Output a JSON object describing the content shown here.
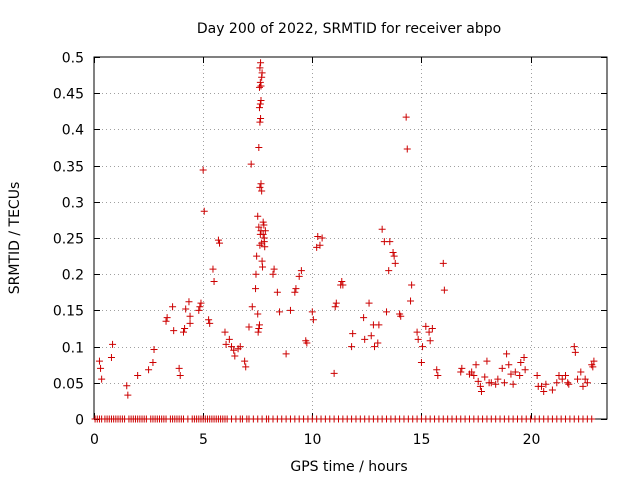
{
  "chart_data": {
    "type": "scatter",
    "title": "Day 200 of 2022, SRMTID for receiver abpo",
    "xlabel": "GPS time / hours",
    "ylabel": "SRMTID / TECUs",
    "xlim": [
      0,
      23.5
    ],
    "ylim": [
      0,
      0.5
    ],
    "x_ticks": [
      0,
      5,
      10,
      15,
      20
    ],
    "y_ticks": [
      0,
      0.05,
      0.1,
      0.15,
      0.2,
      0.25,
      0.3,
      0.35,
      0.4,
      0.45,
      0.5
    ],
    "x_tick_labels": [
      "0",
      "5",
      "10",
      "15",
      "20"
    ],
    "y_tick_labels": [
      "0",
      "0.05",
      "0.1",
      "0.15",
      "0.2",
      "0.25",
      "0.3",
      "0.35",
      "0.4",
      "0.45",
      "0.5"
    ],
    "grid": true,
    "marker": "+",
    "color": "#cc0000",
    "series": [
      {
        "name": "SRMTID",
        "points": [
          [
            0.25,
            0.08
          ],
          [
            0.3,
            0.07
          ],
          [
            0.35,
            0.055
          ],
          [
            0.8,
            0.085
          ],
          [
            0.85,
            0.103
          ],
          [
            1.5,
            0.046
          ],
          [
            1.55,
            0.033
          ],
          [
            2.0,
            0.06
          ],
          [
            2.5,
            0.068
          ],
          [
            2.7,
            0.078
          ],
          [
            2.75,
            0.096
          ],
          [
            3.3,
            0.135
          ],
          [
            3.35,
            0.14
          ],
          [
            3.6,
            0.155
          ],
          [
            3.65,
            0.122
          ],
          [
            3.9,
            0.07
          ],
          [
            3.95,
            0.06
          ],
          [
            4.1,
            0.12
          ],
          [
            4.15,
            0.125
          ],
          [
            4.2,
            0.152
          ],
          [
            4.35,
            0.162
          ],
          [
            4.4,
            0.142
          ],
          [
            4.4,
            0.132
          ],
          [
            4.8,
            0.15
          ],
          [
            4.85,
            0.155
          ],
          [
            4.9,
            0.16
          ],
          [
            5.0,
            0.344
          ],
          [
            5.05,
            0.287
          ],
          [
            5.25,
            0.137
          ],
          [
            5.3,
            0.132
          ],
          [
            5.45,
            0.207
          ],
          [
            5.5,
            0.19
          ],
          [
            5.7,
            0.247
          ],
          [
            5.75,
            0.243
          ],
          [
            6.0,
            0.12
          ],
          [
            6.05,
            0.103
          ],
          [
            6.2,
            0.11
          ],
          [
            6.3,
            0.1
          ],
          [
            6.4,
            0.095
          ],
          [
            6.45,
            0.087
          ],
          [
            6.6,
            0.097
          ],
          [
            6.7,
            0.1
          ],
          [
            6.9,
            0.08
          ],
          [
            6.95,
            0.072
          ],
          [
            7.1,
            0.127
          ],
          [
            7.2,
            0.352
          ],
          [
            7.25,
            0.155
          ],
          [
            7.4,
            0.18
          ],
          [
            7.42,
            0.2
          ],
          [
            7.45,
            0.225
          ],
          [
            7.5,
            0.145
          ],
          [
            7.52,
            0.12
          ],
          [
            7.55,
            0.125
          ],
          [
            7.58,
            0.13
          ],
          [
            7.6,
            0.24
          ],
          [
            7.62,
            0.255
          ],
          [
            7.65,
            0.26
          ],
          [
            7.68,
            0.243
          ],
          [
            7.7,
            0.218
          ],
          [
            7.72,
            0.21
          ],
          [
            7.75,
            0.272
          ],
          [
            7.78,
            0.268
          ],
          [
            7.8,
            0.245
          ],
          [
            7.82,
            0.238
          ],
          [
            7.5,
            0.28
          ],
          [
            7.55,
            0.265
          ],
          [
            7.6,
            0.32
          ],
          [
            7.65,
            0.325
          ],
          [
            7.68,
            0.315
          ],
          [
            7.55,
            0.375
          ],
          [
            7.58,
            0.43
          ],
          [
            7.62,
            0.435
          ],
          [
            7.65,
            0.44
          ],
          [
            7.6,
            0.41
          ],
          [
            7.63,
            0.415
          ],
          [
            7.58,
            0.458
          ],
          [
            7.62,
            0.465
          ],
          [
            7.65,
            0.46
          ],
          [
            7.68,
            0.472
          ],
          [
            7.6,
            0.485
          ],
          [
            7.63,
            0.492
          ],
          [
            7.7,
            0.478
          ],
          [
            7.75,
            0.255
          ],
          [
            7.8,
            0.25
          ],
          [
            7.85,
            0.26
          ],
          [
            8.2,
            0.2
          ],
          [
            8.25,
            0.207
          ],
          [
            8.4,
            0.175
          ],
          [
            8.5,
            0.148
          ],
          [
            8.8,
            0.09
          ],
          [
            9.0,
            0.15
          ],
          [
            9.2,
            0.175
          ],
          [
            9.25,
            0.18
          ],
          [
            9.4,
            0.197
          ],
          [
            9.5,
            0.205
          ],
          [
            9.7,
            0.108
          ],
          [
            9.75,
            0.105
          ],
          [
            10.0,
            0.148
          ],
          [
            10.05,
            0.137
          ],
          [
            10.2,
            0.237
          ],
          [
            10.25,
            0.252
          ],
          [
            10.35,
            0.24
          ],
          [
            10.45,
            0.25
          ],
          [
            11.0,
            0.063
          ],
          [
            11.05,
            0.155
          ],
          [
            11.1,
            0.16
          ],
          [
            11.3,
            0.185
          ],
          [
            11.35,
            0.19
          ],
          [
            11.4,
            0.185
          ],
          [
            11.8,
            0.1
          ],
          [
            11.85,
            0.118
          ],
          [
            12.35,
            0.14
          ],
          [
            12.4,
            0.11
          ],
          [
            12.6,
            0.16
          ],
          [
            12.7,
            0.115
          ],
          [
            12.8,
            0.13
          ],
          [
            12.85,
            0.1
          ],
          [
            13.0,
            0.105
          ],
          [
            13.05,
            0.13
          ],
          [
            13.2,
            0.262
          ],
          [
            13.3,
            0.245
          ],
          [
            13.4,
            0.148
          ],
          [
            13.5,
            0.205
          ],
          [
            13.55,
            0.245
          ],
          [
            13.7,
            0.23
          ],
          [
            13.75,
            0.225
          ],
          [
            13.8,
            0.215
          ],
          [
            14.0,
            0.145
          ],
          [
            14.05,
            0.142
          ],
          [
            14.3,
            0.417
          ],
          [
            14.35,
            0.373
          ],
          [
            14.5,
            0.163
          ],
          [
            14.55,
            0.185
          ],
          [
            14.8,
            0.12
          ],
          [
            14.85,
            0.11
          ],
          [
            15.0,
            0.078
          ],
          [
            15.05,
            0.1
          ],
          [
            15.2,
            0.128
          ],
          [
            15.35,
            0.12
          ],
          [
            15.4,
            0.108
          ],
          [
            15.5,
            0.125
          ],
          [
            15.7,
            0.068
          ],
          [
            15.75,
            0.06
          ],
          [
            16.0,
            0.215
          ],
          [
            16.05,
            0.178
          ],
          [
            16.8,
            0.065
          ],
          [
            16.85,
            0.07
          ],
          [
            17.2,
            0.062
          ],
          [
            17.3,
            0.065
          ],
          [
            17.4,
            0.06
          ],
          [
            17.5,
            0.075
          ],
          [
            17.6,
            0.052
          ],
          [
            17.7,
            0.045
          ],
          [
            17.75,
            0.038
          ],
          [
            17.9,
            0.058
          ],
          [
            18.0,
            0.08
          ],
          [
            18.1,
            0.05
          ],
          [
            18.2,
            0.05
          ],
          [
            18.4,
            0.048
          ],
          [
            18.5,
            0.055
          ],
          [
            18.7,
            0.07
          ],
          [
            18.8,
            0.05
          ],
          [
            18.9,
            0.09
          ],
          [
            19.0,
            0.075
          ],
          [
            19.1,
            0.062
          ],
          [
            19.2,
            0.048
          ],
          [
            19.3,
            0.065
          ],
          [
            19.5,
            0.06
          ],
          [
            19.55,
            0.078
          ],
          [
            19.7,
            0.085
          ],
          [
            19.75,
            0.068
          ],
          [
            20.3,
            0.06
          ],
          [
            20.35,
            0.045
          ],
          [
            20.5,
            0.045
          ],
          [
            20.6,
            0.038
          ],
          [
            20.7,
            0.048
          ],
          [
            21.0,
            0.04
          ],
          [
            21.2,
            0.05
          ],
          [
            21.3,
            0.06
          ],
          [
            21.45,
            0.055
          ],
          [
            21.6,
            0.06
          ],
          [
            21.7,
            0.05
          ],
          [
            21.75,
            0.048
          ],
          [
            22.0,
            0.1
          ],
          [
            22.05,
            0.092
          ],
          [
            22.15,
            0.055
          ],
          [
            22.3,
            0.065
          ],
          [
            22.4,
            0.045
          ],
          [
            22.5,
            0.055
          ],
          [
            22.6,
            0.05
          ],
          [
            22.8,
            0.075
          ],
          [
            22.85,
            0.072
          ],
          [
            22.9,
            0.08
          ]
        ]
      }
    ],
    "baseline_points": [
      0.05,
      0.15,
      0.25,
      0.35,
      0.5,
      0.6,
      0.7,
      0.8,
      0.9,
      1.0,
      1.1,
      1.2,
      1.3,
      1.4,
      1.6,
      1.7,
      1.8,
      1.9,
      2.0,
      2.1,
      2.2,
      2.3,
      2.4,
      2.6,
      2.7,
      2.8,
      2.9,
      3.0,
      3.1,
      3.2,
      3.3,
      3.5,
      3.6,
      3.7,
      3.8,
      3.9,
      4.0,
      4.1,
      4.3,
      4.5,
      4.6,
      4.7,
      4.8,
      4.9,
      5.0,
      5.1,
      5.2,
      5.3,
      5.4,
      5.5,
      5.6,
      5.7,
      5.8,
      5.9,
      6.0,
      6.1,
      6.3,
      6.5,
      6.7,
      6.8,
      7.0,
      7.1,
      7.3,
      7.5,
      7.7,
      7.9,
      8.0,
      8.2,
      8.4,
      8.6,
      8.8,
      9.0,
      9.2,
      9.4,
      9.6,
      9.8,
      10.0,
      10.2,
      10.4,
      10.6,
      10.8,
      11.0,
      11.2,
      11.4,
      11.6,
      11.8,
      12.0,
      12.2,
      12.4,
      12.6,
      12.8,
      13.0,
      13.2,
      13.4,
      13.6,
      13.8,
      14.0,
      14.2,
      14.4,
      14.6,
      14.8,
      15.0,
      15.2,
      15.4,
      15.6,
      15.8,
      16.0,
      16.2,
      16.4,
      16.6,
      16.8,
      17.0,
      17.2,
      17.4,
      17.6,
      17.8,
      18.0,
      18.2,
      18.4,
      18.6,
      18.8,
      19.0,
      19.2,
      19.4,
      19.6,
      19.8,
      20.0,
      20.2,
      20.4,
      20.6,
      20.8,
      21.0,
      21.2,
      21.4,
      21.6,
      21.8,
      22.0,
      22.2,
      22.4,
      22.6,
      22.8
    ]
  }
}
